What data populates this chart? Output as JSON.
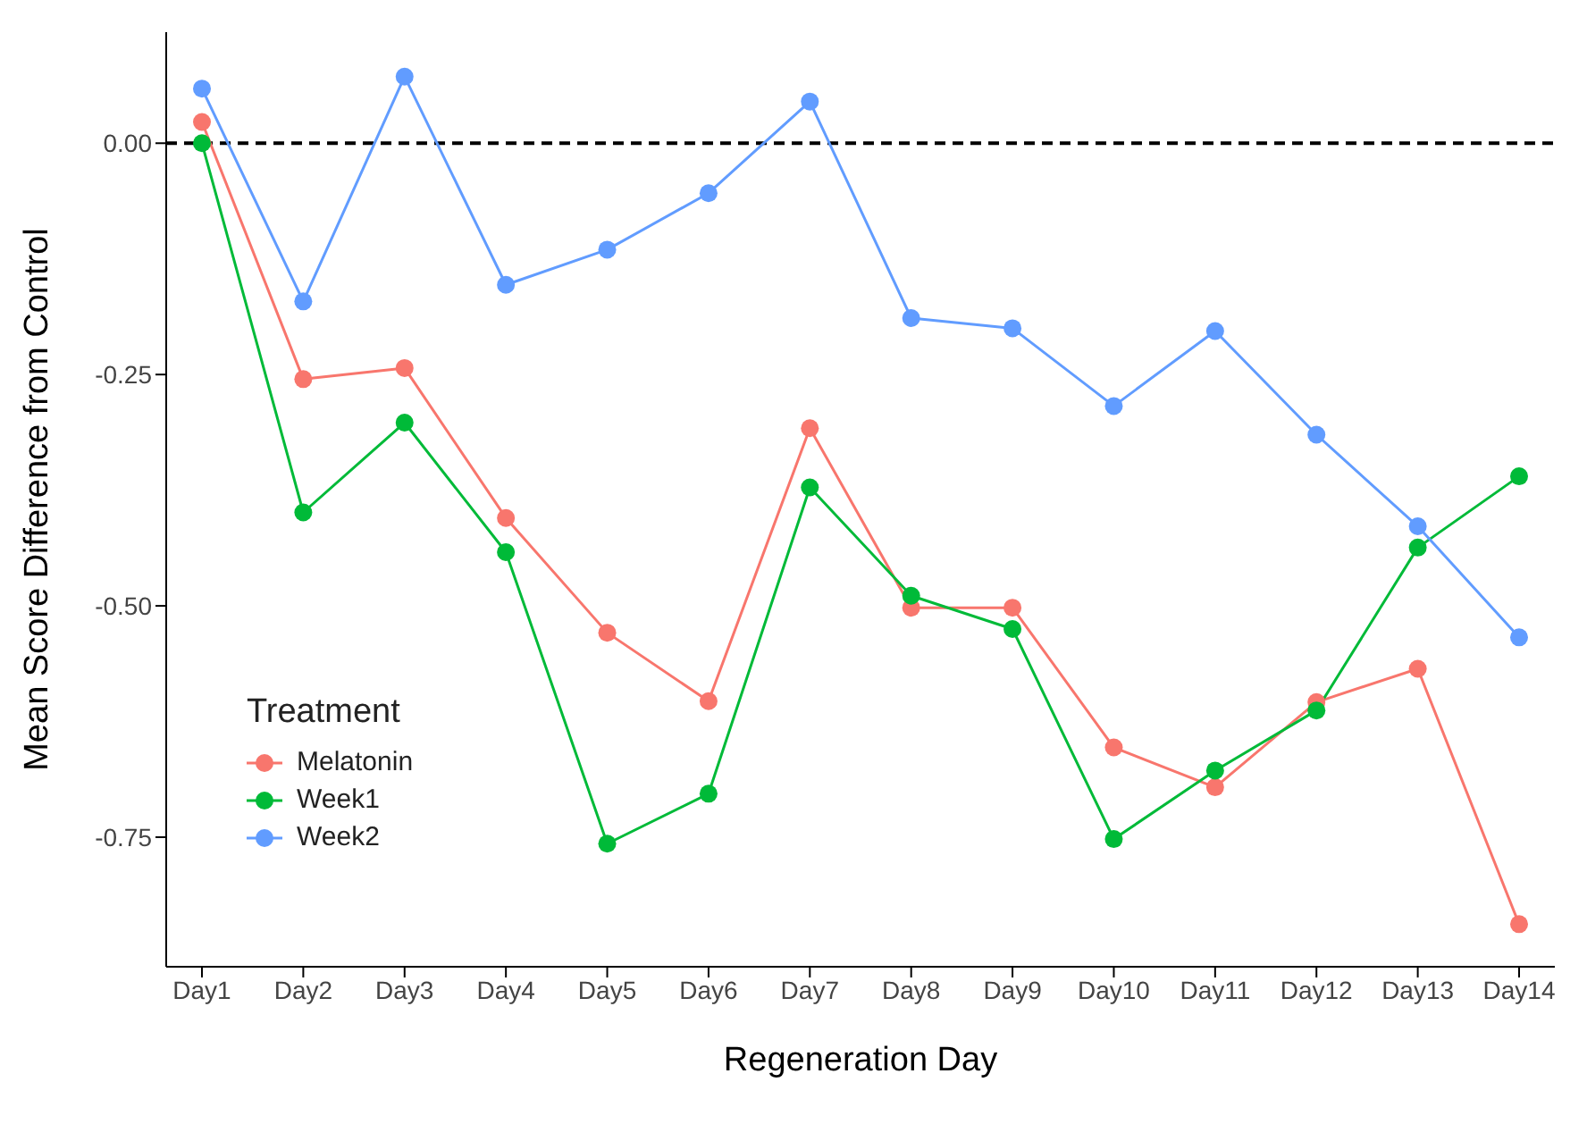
{
  "chart_data": {
    "type": "line",
    "xlabel": "Regeneration Day",
    "ylabel": "Mean Score Difference from Control",
    "legend_title": "Treatment",
    "categories": [
      "Day1",
      "Day2",
      "Day3",
      "Day4",
      "Day5",
      "Day6",
      "Day7",
      "Day8",
      "Day9",
      "Day10",
      "Day11",
      "Day12",
      "Day13",
      "Day14"
    ],
    "series": [
      {
        "name": "Melatonin",
        "color": "#f8766d",
        "values": [
          0.023,
          -0.255,
          -0.243,
          -0.405,
          -0.529,
          -0.603,
          -0.308,
          -0.502,
          -0.502,
          -0.653,
          -0.696,
          -0.604,
          -0.568,
          -0.844
        ]
      },
      {
        "name": "Week1",
        "color": "#00ba38",
        "values": [
          0,
          -0.399,
          -0.302,
          -0.442,
          -0.757,
          -0.703,
          -0.372,
          -0.489,
          -0.525,
          -0.752,
          -0.678,
          -0.613,
          -0.437,
          -0.36
        ]
      },
      {
        "name": "Week2",
        "color": "#619cff",
        "values": [
          0.059,
          -0.171,
          0.072,
          -0.153,
          -0.115,
          -0.054,
          0.045,
          -0.189,
          -0.2,
          -0.284,
          -0.203,
          -0.315,
          -0.414,
          -0.534
        ]
      }
    ],
    "ylim": [
      -0.89,
      0.12
    ],
    "yticks": [
      {
        "value": 0,
        "label": "0.00"
      },
      {
        "value": -0.25,
        "label": "-0.25"
      },
      {
        "value": -0.5,
        "label": "-0.50"
      },
      {
        "value": -0.75,
        "label": "-0.75"
      }
    ],
    "ref_lines": [
      {
        "axis": "y",
        "value": 0,
        "label": null,
        "color": "#000000",
        "line_style": "dashed"
      }
    ],
    "grid": false,
    "legend": "bottom left",
    "marker": "circle",
    "line_style": "solid"
  }
}
